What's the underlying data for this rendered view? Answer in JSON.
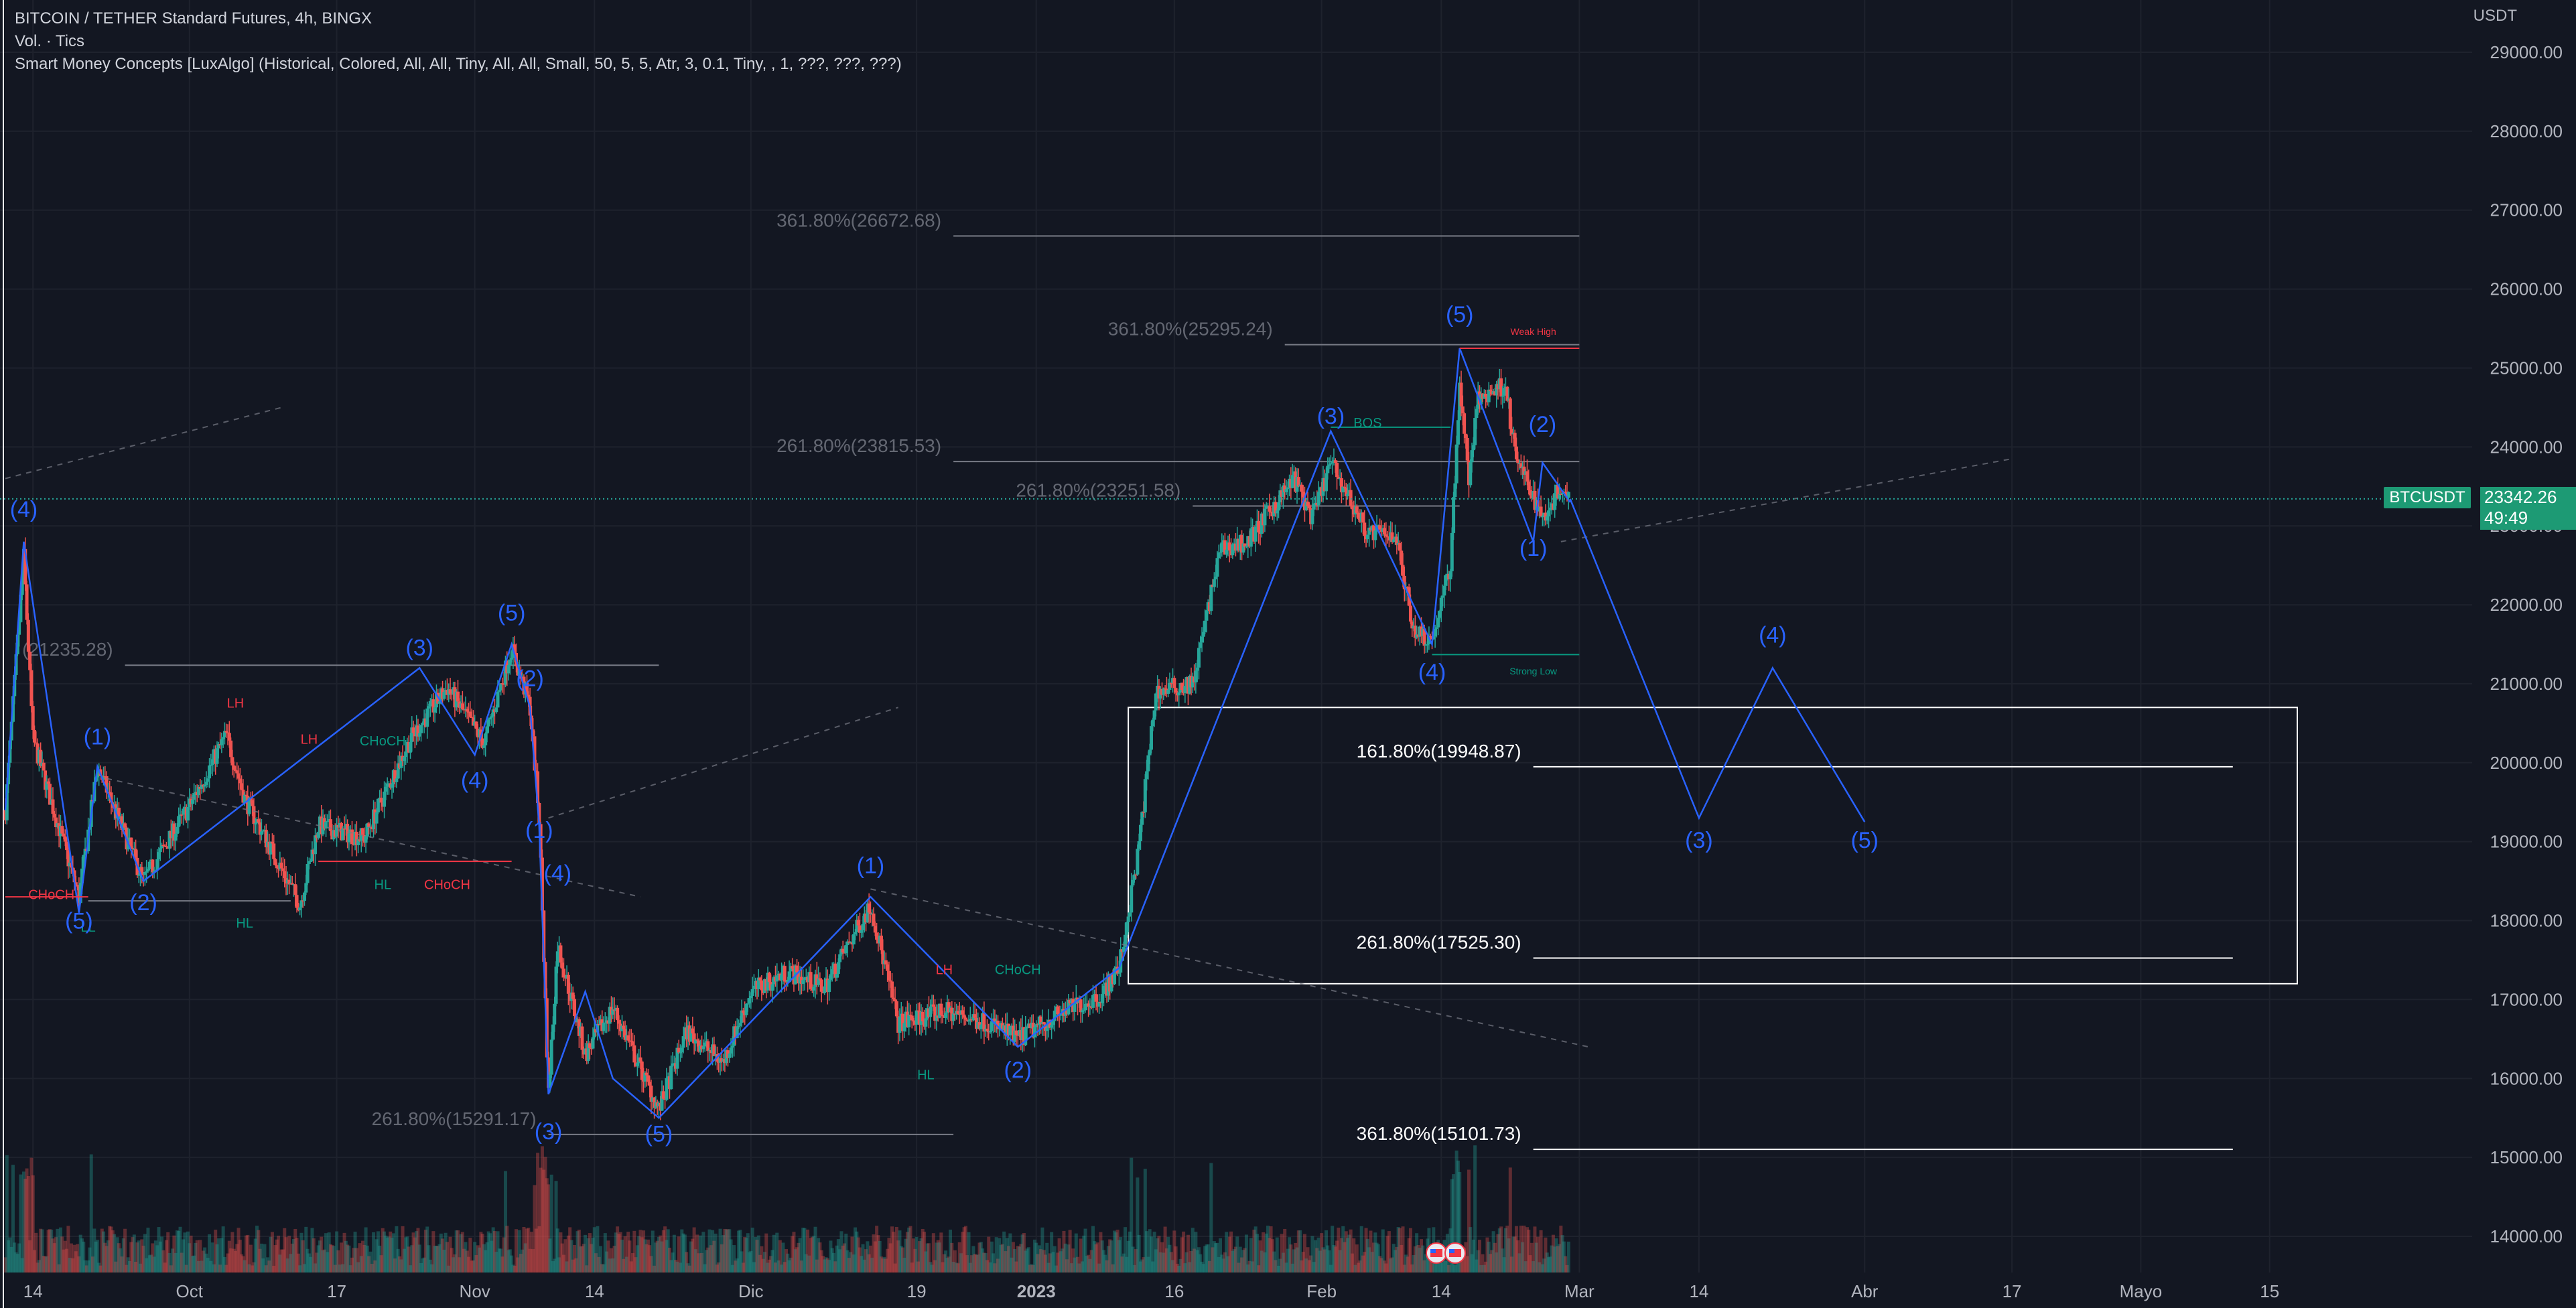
{
  "header": {
    "title": "BITCOIN / TETHER Standard Futures, 4h, BINGX",
    "volume": "Vol. · Tics",
    "indicator": "Smart Money Concepts [LuxAlgo] (Historical, Colored, All, All, Tiny, All, All, Small, 50, 5, 5, Atr, 3, 0.1, Tiny, , 1, ???, ???, ???)"
  },
  "price_axis": {
    "currency": "USDT",
    "ticker": "BTCUSDT",
    "last_price": "23342.26",
    "countdown": "49:49"
  },
  "colors": {
    "background": "#131722",
    "up": "#26a69a",
    "down": "#ef5350",
    "wave": "#2962ff",
    "grid": "#1e222d",
    "fib_gray": "#787b86",
    "fib_white": "#ffffff",
    "smc_green": "#089981",
    "smc_red": "#f23645"
  },
  "chart_data": {
    "type": "candlestick",
    "symbol": "BTCUSDT",
    "timeframe": "4h",
    "y_axis": {
      "min": 13600,
      "max": 29500,
      "ticks": [
        14000,
        15000,
        16000,
        17000,
        18000,
        19000,
        20000,
        21000,
        22000,
        23000,
        24000,
        25000,
        26000,
        27000,
        28000,
        29000
      ],
      "tick_labels": [
        "14000.00",
        "15000.00",
        "16000.00",
        "17000.00",
        "18000.00",
        "19000.00",
        "20000.00",
        "21000.00",
        "22000.00",
        "23000.00",
        "24000.00",
        "25000.00",
        "26000.00",
        "27000.00",
        "28000.00",
        "29000.00"
      ]
    },
    "x_axis": {
      "start": "2022-09-11",
      "end": "2023-06-06",
      "ticks": [
        {
          "date": "2022-09-14",
          "label": "14",
          "bold": false
        },
        {
          "date": "2022-10-01",
          "label": "Oct",
          "bold": false
        },
        {
          "date": "2022-10-17",
          "label": "17",
          "bold": false
        },
        {
          "date": "2022-11-01",
          "label": "Nov",
          "bold": false
        },
        {
          "date": "2022-11-14",
          "label": "14",
          "bold": false
        },
        {
          "date": "2022-12-01",
          "label": "Dic",
          "bold": false
        },
        {
          "date": "2022-12-19",
          "label": "19",
          "bold": false
        },
        {
          "date": "2023-01-01",
          "label": "2023",
          "bold": true
        },
        {
          "date": "2023-01-16",
          "label": "16",
          "bold": false
        },
        {
          "date": "2023-02-01",
          "label": "Feb",
          "bold": false
        },
        {
          "date": "2023-02-14",
          "label": "14",
          "bold": false
        },
        {
          "date": "2023-03-01",
          "label": "Mar",
          "bold": false
        },
        {
          "date": "2023-03-14",
          "label": "14",
          "bold": false
        },
        {
          "date": "2023-04-01",
          "label": "Abr",
          "bold": false
        },
        {
          "date": "2023-04-17",
          "label": "17",
          "bold": false
        },
        {
          "date": "2023-05-01",
          "label": "Mayo",
          "bold": false
        },
        {
          "date": "2023-05-15",
          "label": "15",
          "bold": false
        }
      ]
    },
    "price_path": [
      [
        "2022-09-11",
        19400
      ],
      [
        "2022-09-13",
        22600
      ],
      [
        "2022-09-14",
        20300
      ],
      [
        "2022-09-19",
        18300
      ],
      [
        "2022-09-21",
        19950
      ],
      [
        "2022-09-26",
        18500
      ],
      [
        "2022-10-01",
        19450
      ],
      [
        "2022-10-05",
        20350
      ],
      [
        "2022-10-07",
        19550
      ],
      [
        "2022-10-13",
        18200
      ],
      [
        "2022-10-15",
        19200
      ],
      [
        "2022-10-20",
        19050
      ],
      [
        "2022-10-25",
        20300
      ],
      [
        "2022-10-29",
        20950
      ],
      [
        "2022-11-02",
        20250
      ],
      [
        "2022-11-05",
        21450
      ],
      [
        "2022-11-07",
        20700
      ],
      [
        "2022-11-08",
        19300
      ],
      [
        "2022-11-09",
        15800
      ],
      [
        "2022-11-10",
        17700
      ],
      [
        "2022-11-13",
        16300
      ],
      [
        "2022-11-16",
        16900
      ],
      [
        "2022-11-21",
        15600
      ],
      [
        "2022-11-24",
        16600
      ],
      [
        "2022-11-28",
        16200
      ],
      [
        "2022-12-01",
        17100
      ],
      [
        "2022-12-05",
        17350
      ],
      [
        "2022-12-09",
        17150
      ],
      [
        "2022-12-14",
        18200
      ],
      [
        "2022-12-17",
        16700
      ],
      [
        "2022-12-22",
        16850
      ],
      [
        "2022-12-27",
        16700
      ],
      [
        "2022-12-30",
        16500
      ],
      [
        "2023-01-04",
        16850
      ],
      [
        "2023-01-08",
        17050
      ],
      [
        "2023-01-10",
        17400
      ],
      [
        "2023-01-12",
        18800
      ],
      [
        "2023-01-14",
        20900
      ],
      [
        "2023-01-18",
        21000
      ],
      [
        "2023-01-21",
        22700
      ],
      [
        "2023-01-24",
        22800
      ],
      [
        "2023-01-29",
        23600
      ],
      [
        "2023-01-31",
        23100
      ],
      [
        "2023-02-02",
        23800
      ],
      [
        "2023-02-06",
        22900
      ],
      [
        "2023-02-09",
        22900
      ],
      [
        "2023-02-11",
        21700
      ],
      [
        "2023-02-13",
        21550
      ],
      [
        "2023-02-15",
        22500
      ],
      [
        "2023-02-16",
        24800
      ],
      [
        "2023-02-17",
        23600
      ],
      [
        "2023-02-18",
        24600
      ],
      [
        "2023-02-21",
        24800
      ],
      [
        "2023-02-22",
        23900
      ],
      [
        "2023-02-25",
        23100
      ],
      [
        "2023-02-27",
        23500
      ],
      [
        "2023-02-28",
        23342
      ]
    ],
    "wave_projection": [
      [
        "2023-02-28",
        23342
      ],
      [
        "2023-03-14",
        19300
      ],
      [
        "2023-03-22",
        21200
      ],
      [
        "2023-04-01",
        19250
      ]
    ],
    "annotations": {
      "wave_labels": [
        {
          "text": "(4)",
          "date": "2022-09-13",
          "price": 23110
        },
        {
          "text": "(1)",
          "date": "2022-09-21",
          "price": 20230
        },
        {
          "text": "(5)",
          "date": "2022-09-19",
          "price": 17900
        },
        {
          "text": "(2)",
          "date": "2022-09-26",
          "price": 18130
        },
        {
          "text": "(3)",
          "date": "2022-10-26",
          "price": 21360
        },
        {
          "text": "(4)",
          "date": "2022-11-01",
          "price": 19680
        },
        {
          "text": "(5)",
          "date": "2022-11-05",
          "price": 21800
        },
        {
          "text": "(2)",
          "date": "2022-11-07",
          "price": 20970
        },
        {
          "text": "(1)",
          "date": "2022-11-08",
          "price": 19050
        },
        {
          "text": "(4)",
          "date": "2022-11-10",
          "price": 18500
        },
        {
          "text": "(3)",
          "date": "2022-11-09",
          "price": 15230
        },
        {
          "text": "(5)",
          "date": "2022-11-21",
          "price": 15200
        },
        {
          "text": "(1)",
          "date": "2022-12-14",
          "price": 18600
        },
        {
          "text": "(2)",
          "date": "2022-12-30",
          "price": 16010
        },
        {
          "text": "(3)",
          "date": "2023-02-02",
          "price": 24290
        },
        {
          "text": "(4)",
          "date": "2023-02-13",
          "price": 21050
        },
        {
          "text": "(5)",
          "date": "2023-02-16",
          "price": 25580
        },
        {
          "text": "(2)",
          "date": "2023-02-25",
          "price": 24190
        },
        {
          "text": "(1)",
          "date": "2023-02-24",
          "price": 22620
        },
        {
          "text": "(4)",
          "date": "2023-03-22",
          "price": 21520
        },
        {
          "text": "(3)",
          "date": "2023-03-14",
          "price": 18920
        },
        {
          "text": "(5)",
          "date": "2023-04-01",
          "price": 18920
        }
      ],
      "fib_levels": [
        {
          "label": "361.80%(26672.68)",
          "price": 26672.68,
          "from": "2022-12-23",
          "to": "2023-03-01",
          "style": "gray"
        },
        {
          "label": "361.80%(25295.24)",
          "price": 25295.24,
          "from": "2023-01-28",
          "to": "2023-03-01",
          "style": "gray"
        },
        {
          "label": "261.80%(23815.53)",
          "price": 23815.53,
          "from": "2022-12-23",
          "to": "2023-03-01",
          "style": "gray"
        },
        {
          "label": "261.80%(23251.58)",
          "price": 23251.58,
          "from": "2023-01-18",
          "to": "2023-02-16",
          "style": "gray"
        },
        {
          "label": "(21235.28)",
          "price": 21235.28,
          "from": "2022-09-24",
          "to": "2022-11-21",
          "style": "gray"
        },
        {
          "label": "261.80%(15291.17)",
          "price": 15291.17,
          "from": "2022-11-09",
          "to": "2022-12-23",
          "style": "gray"
        },
        {
          "label": "161.80%(19948.87)",
          "price": 19948.87,
          "from": "2023-02-24",
          "to": "2023-05-11",
          "style": "white"
        },
        {
          "label": "261.80%(17525.30)",
          "price": 17525.3,
          "from": "2023-02-24",
          "to": "2023-05-11",
          "style": "white"
        },
        {
          "label": "361.80%(15101.73)",
          "price": 15101.73,
          "from": "2023-02-24",
          "to": "2023-05-11",
          "style": "white"
        }
      ],
      "smc_labels": [
        {
          "text": "LH",
          "date": "2022-10-06",
          "price": 20700,
          "color": "red"
        },
        {
          "text": "LH",
          "date": "2022-10-14",
          "price": 20240,
          "color": "red"
        },
        {
          "text": "CHoCH",
          "date": "2022-10-22",
          "price": 20220,
          "color": "green"
        },
        {
          "text": "HL",
          "date": "2022-10-22",
          "price": 18400,
          "color": "green"
        },
        {
          "text": "CHoCH",
          "date": "2022-10-29",
          "price": 18400,
          "color": "red"
        },
        {
          "text": "HL",
          "date": "2022-10-07",
          "price": 17910,
          "color": "green"
        },
        {
          "text": "CHoCH",
          "date": "2022-09-16",
          "price": 18270,
          "color": "red"
        },
        {
          "text": "LL",
          "date": "2022-09-20",
          "price": 17860,
          "color": "green"
        },
        {
          "text": "BOS",
          "date": "2023-02-06",
          "price": 24250,
          "color": "green"
        },
        {
          "text": "LH",
          "date": "2022-12-22",
          "price": 17320,
          "color": "red"
        },
        {
          "text": "CHoCH",
          "date": "2022-12-30",
          "price": 17320,
          "color": "green"
        },
        {
          "text": "HL",
          "date": "2022-12-20",
          "price": 15990,
          "color": "green"
        },
        {
          "text": "Weak High",
          "date": "2023-02-24",
          "price": 25420,
          "color": "red",
          "small": true
        },
        {
          "text": "Strong Low",
          "date": "2023-02-24",
          "price": 21120,
          "color": "green",
          "small": true
        }
      ],
      "box": {
        "from": "2023-01-11",
        "to": "2023-05-18",
        "high": 20700,
        "low": 17200
      }
    }
  }
}
